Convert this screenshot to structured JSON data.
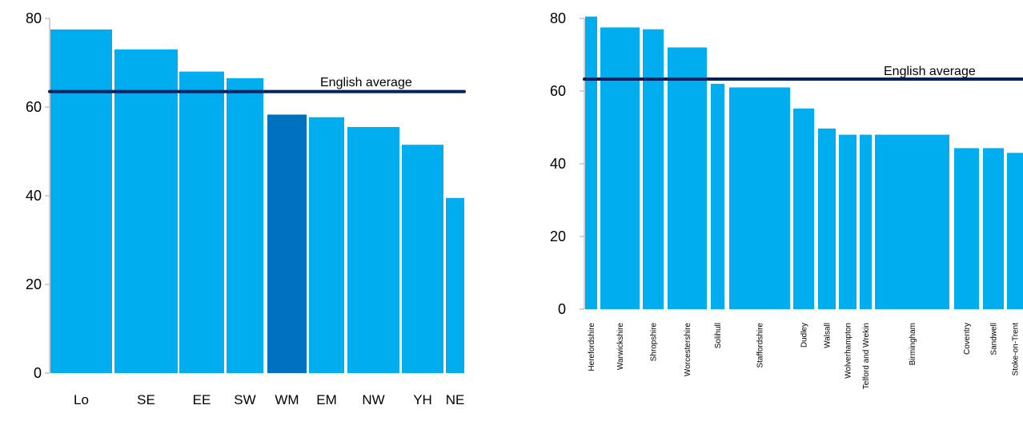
{
  "colors": {
    "bar": "#00AEEF",
    "bar_highlight": "#0070C0",
    "average_line": "#002060",
    "axis": "#A6A6A6"
  },
  "chart_data": [
    {
      "type": "bar",
      "yticks": [
        0,
        20,
        40,
        60,
        80
      ],
      "ylim": [
        0,
        80
      ],
      "categories": [
        "Lo",
        "SE",
        "EE",
        "SW",
        "WM",
        "EM",
        "NW",
        "YH",
        "NE"
      ],
      "values": [
        77.5,
        73,
        68,
        66.5,
        58.3,
        57.7,
        55.5,
        51.5,
        39.5
      ],
      "highlight": "WM",
      "reference_line": {
        "label": "English average",
        "value": 63.5
      },
      "xlabel": "",
      "ylabel": ""
    },
    {
      "type": "bar",
      "yticks": [
        0,
        20,
        40,
        60,
        80
      ],
      "ylim": [
        0,
        80
      ],
      "categories": [
        "Herefordshire",
        "Warwickshire",
        "Shropshire",
        "Worcestershire",
        "Solihull",
        "Staffordshire",
        "Dudley",
        "Walsall",
        "Wolverhampton",
        "Telford and Wrekin",
        "Birmingham",
        "Coventry",
        "Sandwell",
        "Stoke-on-Trent"
      ],
      "values": [
        80.5,
        77.5,
        77,
        72,
        62,
        61,
        55.2,
        49.7,
        48,
        48,
        48,
        44.3,
        44.3,
        43
      ],
      "reference_line": {
        "label": "English average",
        "value": 63.3
      },
      "xlabel": "",
      "ylabel": ""
    }
  ]
}
